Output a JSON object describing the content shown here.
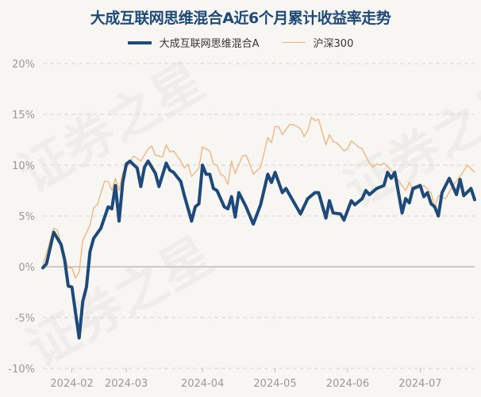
{
  "watermark": "证券之星",
  "chart_data": {
    "type": "line",
    "title": "大成互联网思维混合A近6个月累计收益率走势",
    "xlabel": "",
    "ylabel": "",
    "ylim": [
      -10,
      20
    ],
    "xlim": [
      0,
      119
    ],
    "yticks": [
      {
        "v": 20,
        "label": "20%"
      },
      {
        "v": 15,
        "label": "15%"
      },
      {
        "v": 10,
        "label": "10%"
      },
      {
        "v": 5,
        "label": "5%"
      },
      {
        "v": 0,
        "label": "0%"
      },
      {
        "v": -5,
        "label": "-5%"
      },
      {
        "v": -10,
        "label": "-10%"
      }
    ],
    "xticks": [
      {
        "i": 8,
        "label": "2024-02"
      },
      {
        "i": 23,
        "label": "2024-03"
      },
      {
        "i": 44,
        "label": "2024-04"
      },
      {
        "i": 64,
        "label": "2024-05"
      },
      {
        "i": 84,
        "label": "2024-06"
      },
      {
        "i": 104,
        "label": "2024-07"
      }
    ],
    "grid": true,
    "legend_position": "top-center",
    "series": [
      {
        "name": "大成互联网思维混合A",
        "color": "#1e4a7a",
        "points": [
          [
            0,
            -0.1
          ],
          [
            1,
            0.3
          ],
          [
            3,
            3.4
          ],
          [
            5,
            2.2
          ],
          [
            6,
            0.7
          ],
          [
            7,
            -1.9
          ],
          [
            8,
            -2.0
          ],
          [
            10,
            -7.0
          ],
          [
            11,
            -3.4
          ],
          [
            12,
            -2.0
          ],
          [
            13,
            1.5
          ],
          [
            14,
            2.8
          ],
          [
            16,
            3.8
          ],
          [
            18,
            5.9
          ],
          [
            19,
            5.7
          ],
          [
            20,
            8.0
          ],
          [
            21,
            4.5
          ],
          [
            22,
            8.3
          ],
          [
            23,
            10.1
          ],
          [
            24,
            10.4
          ],
          [
            26,
            9.7
          ],
          [
            27,
            7.9
          ],
          [
            28,
            9.8
          ],
          [
            29,
            10.4
          ],
          [
            31,
            9.2
          ],
          [
            32,
            7.9
          ],
          [
            34,
            10.2
          ],
          [
            35,
            9.5
          ],
          [
            36,
            9.3
          ],
          [
            38,
            8.4
          ],
          [
            39,
            7.0
          ],
          [
            41,
            4.5
          ],
          [
            42,
            5.9
          ],
          [
            43,
            6.2
          ],
          [
            44,
            10.0
          ],
          [
            45,
            9.1
          ],
          [
            46,
            9.1
          ],
          [
            47,
            7.7
          ],
          [
            48,
            7.5
          ],
          [
            50,
            5.9
          ],
          [
            51,
            5.7
          ],
          [
            52,
            6.9
          ],
          [
            53,
            4.9
          ],
          [
            54,
            7.3
          ],
          [
            56,
            5.9
          ],
          [
            58,
            4.2
          ],
          [
            60,
            6.1
          ],
          [
            62,
            9.1
          ],
          [
            63,
            8.3
          ],
          [
            64,
            9.3
          ],
          [
            66,
            7.3
          ],
          [
            67,
            7.7
          ],
          [
            71,
            5.2
          ],
          [
            73,
            6.7
          ],
          [
            75,
            7.3
          ],
          [
            76,
            7.3
          ],
          [
            78,
            4.8
          ],
          [
            79,
            6.5
          ],
          [
            80,
            5.3
          ],
          [
            82,
            5.2
          ],
          [
            83,
            4.6
          ],
          [
            85,
            6.5
          ],
          [
            86,
            6.1
          ],
          [
            88,
            6.7
          ],
          [
            89,
            7.5
          ],
          [
            90,
            7.1
          ],
          [
            92,
            7.7
          ],
          [
            94,
            8.0
          ],
          [
            95,
            9.3
          ],
          [
            96,
            8.7
          ],
          [
            97,
            9.3
          ],
          [
            99,
            5.3
          ],
          [
            100,
            6.7
          ],
          [
            101,
            6.3
          ],
          [
            102,
            7.7
          ],
          [
            104,
            8.0
          ],
          [
            105,
            6.9
          ],
          [
            106,
            7.3
          ],
          [
            107,
            6.2
          ],
          [
            108,
            5.9
          ],
          [
            109,
            5.0
          ],
          [
            110,
            7.3
          ],
          [
            112,
            8.7
          ],
          [
            114,
            7.1
          ],
          [
            115,
            8.6
          ],
          [
            116,
            7.0
          ],
          [
            118,
            7.7
          ],
          [
            119,
            6.6
          ]
        ]
      },
      {
        "name": "沪深300",
        "color": "#f0b27a",
        "points": [
          [
            0,
            0.1
          ],
          [
            3,
            3.8
          ],
          [
            4,
            3.6
          ],
          [
            6,
            1.0
          ],
          [
            7,
            -0.1
          ],
          [
            8,
            -0.1
          ],
          [
            9,
            -1.1
          ],
          [
            10,
            -0.5
          ],
          [
            11,
            2.6
          ],
          [
            13,
            4.1
          ],
          [
            14,
            5.8
          ],
          [
            15,
            6.1
          ],
          [
            17,
            8.4
          ],
          [
            18,
            8.4
          ],
          [
            19,
            7.5
          ],
          [
            20,
            8.7
          ],
          [
            21,
            7.5
          ],
          [
            22,
            9.3
          ],
          [
            24,
            10.2
          ],
          [
            25,
            10.9
          ],
          [
            27,
            10.4
          ],
          [
            29,
            11.6
          ],
          [
            30,
            11.9
          ],
          [
            31,
            11.0
          ],
          [
            33,
            10.8
          ],
          [
            34,
            12.0
          ],
          [
            35,
            11.3
          ],
          [
            36,
            11.4
          ],
          [
            38,
            10.4
          ],
          [
            39,
            9.7
          ],
          [
            40,
            10.1
          ],
          [
            41,
            8.9
          ],
          [
            43,
            9.7
          ],
          [
            44,
            11.8
          ],
          [
            46,
            11.4
          ],
          [
            47,
            10.1
          ],
          [
            48,
            10.0
          ],
          [
            49,
            9.1
          ],
          [
            50,
            8.9
          ],
          [
            51,
            8.1
          ],
          [
            52,
            10.4
          ],
          [
            53,
            9.2
          ],
          [
            55,
            10.9
          ],
          [
            56,
            11.0
          ],
          [
            57,
            10.1
          ],
          [
            58,
            9.1
          ],
          [
            60,
            9.8
          ],
          [
            62,
            12.7
          ],
          [
            63,
            12.2
          ],
          [
            64,
            13.8
          ],
          [
            65,
            13.8
          ],
          [
            66,
            13.0
          ],
          [
            68,
            14.0
          ],
          [
            69,
            14.0
          ],
          [
            71,
            13.6
          ],
          [
            72,
            12.8
          ],
          [
            73,
            13.4
          ],
          [
            74,
            14.7
          ],
          [
            75,
            14.4
          ],
          [
            76,
            14.5
          ],
          [
            78,
            12.0
          ],
          [
            79,
            13.0
          ],
          [
            80,
            12.3
          ],
          [
            81,
            12.2
          ],
          [
            83,
            11.4
          ],
          [
            84,
            11.6
          ],
          [
            85,
            12.4
          ],
          [
            87,
            11.8
          ],
          [
            88,
            11.6
          ],
          [
            90,
            10.2
          ],
          [
            91,
            9.8
          ],
          [
            92,
            10.1
          ],
          [
            93,
            10.0
          ],
          [
            94,
            10.2
          ],
          [
            96,
            9.5
          ],
          [
            98,
            8.5
          ],
          [
            100,
            7.5
          ],
          [
            101,
            8.3
          ],
          [
            102,
            7.5
          ],
          [
            105,
            8.0
          ],
          [
            107,
            7.3
          ],
          [
            108,
            5.9
          ],
          [
            109,
            7.0
          ],
          [
            111,
            6.7
          ],
          [
            113,
            8.0
          ],
          [
            115,
            8.9
          ],
          [
            117,
            10.0
          ],
          [
            119,
            9.3
          ]
        ]
      }
    ]
  }
}
